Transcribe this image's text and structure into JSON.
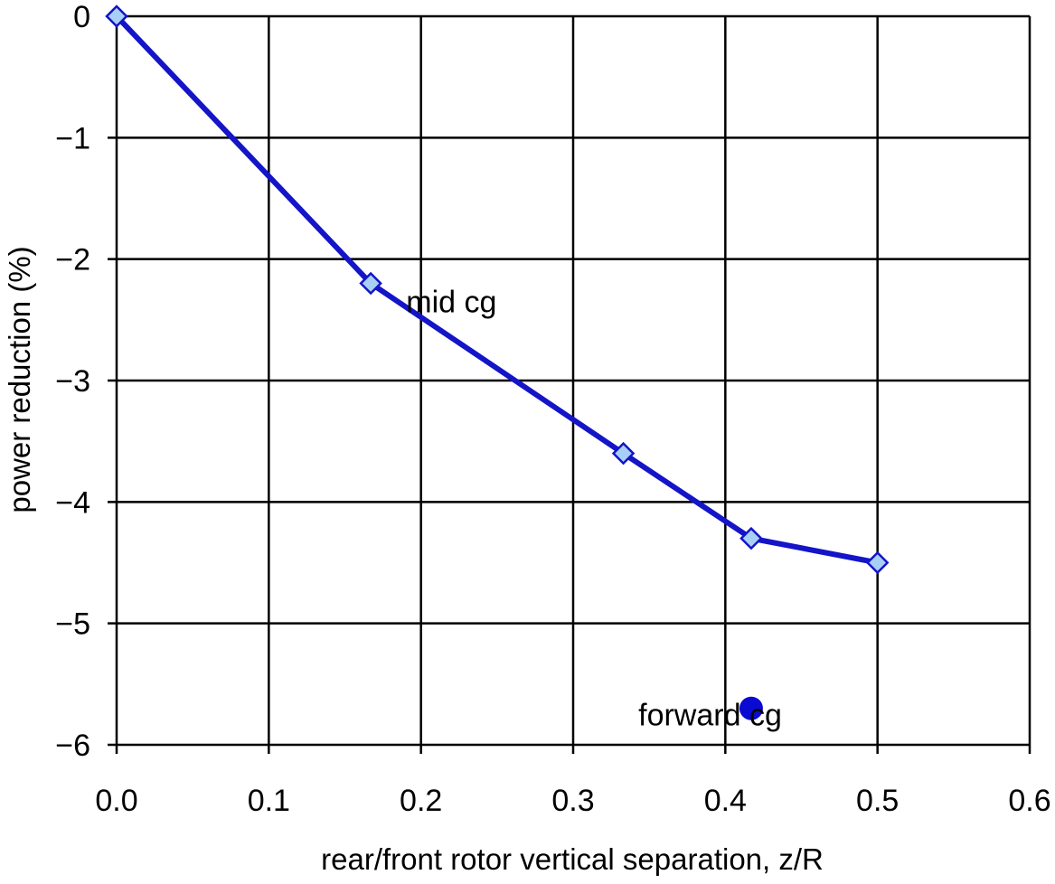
{
  "chart_data": {
    "type": "line",
    "title": "",
    "xlabel": "rear/front rotor vertical separation, z/R",
    "ylabel": "power reduction (%)",
    "xlim": [
      0,
      0.6
    ],
    "ylim": [
      -6,
      0
    ],
    "grid": true,
    "x_ticks": [
      {
        "value": 0.0,
        "label": "0.0"
      },
      {
        "value": 0.1,
        "label": "0.1"
      },
      {
        "value": 0.2,
        "label": "0.2"
      },
      {
        "value": 0.3,
        "label": "0.3"
      },
      {
        "value": 0.4,
        "label": "0.4"
      },
      {
        "value": 0.5,
        "label": "0.5"
      },
      {
        "value": 0.6,
        "label": "0.6"
      }
    ],
    "y_ticks": [
      {
        "value": 0,
        "label": "0"
      },
      {
        "value": -1,
        "label": "−1"
      },
      {
        "value": -2,
        "label": "−2"
      },
      {
        "value": -3,
        "label": "−3"
      },
      {
        "value": -4,
        "label": "−4"
      },
      {
        "value": -5,
        "label": "−5"
      },
      {
        "value": -6,
        "label": "−6"
      }
    ],
    "series": [
      {
        "name": "mid cg",
        "marker": "diamond",
        "line_color": "#1414c8",
        "marker_fill": "#a8d0f4",
        "points": [
          {
            "x": 0.0,
            "y": 0.0
          },
          {
            "x": 0.167,
            "y": -2.2
          },
          {
            "x": 0.333,
            "y": -3.6
          },
          {
            "x": 0.417,
            "y": -4.3
          },
          {
            "x": 0.5,
            "y": -4.5
          }
        ]
      },
      {
        "name": "forward cg",
        "marker": "circle",
        "marker_fill": "#0a0ad2",
        "points": [
          {
            "x": 0.417,
            "y": -5.7
          }
        ]
      }
    ],
    "annotations": [
      {
        "text": "mid cg",
        "x": 0.22,
        "y": -2.35
      },
      {
        "text": "forward cg",
        "x": 0.39,
        "y": -5.75
      }
    ]
  }
}
